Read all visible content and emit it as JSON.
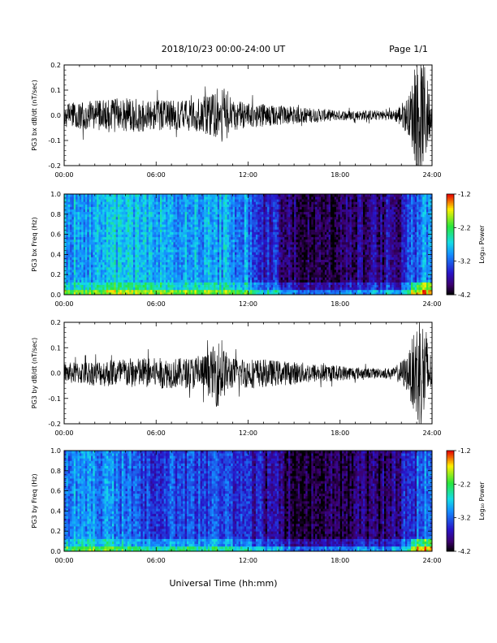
{
  "header": {
    "title": "2018/10/23  00:00-24:00 UT",
    "page": "Page 1/1"
  },
  "xlabel": "Universal Time (hh:mm)",
  "colorbar_label": "Log₁₀ Power",
  "chart_data": [
    {
      "type": "line",
      "ylabel": "PG3 bx dB/dt (nT/sec)",
      "xlim": [
        0,
        24
      ],
      "ylim": [
        -0.2,
        0.2
      ],
      "x_ticks": [
        "00:00",
        "06:00",
        "12:00",
        "18:00",
        "24:00"
      ],
      "y_ticks": [
        "-0.2",
        "-0.1",
        "0.0",
        "0.1",
        "0.2"
      ],
      "x_hours": [
        0,
        2,
        4,
        6,
        8,
        9.5,
        10,
        10.5,
        11,
        12,
        14,
        16,
        18,
        20,
        21.5,
        22.5,
        23,
        23.5,
        24
      ],
      "envelope": [
        0.05,
        0.06,
        0.07,
        0.06,
        0.06,
        0.08,
        0.09,
        0.12,
        0.06,
        0.05,
        0.04,
        0.03,
        0.02,
        0.02,
        0.02,
        0.08,
        0.22,
        0.22,
        0.05
      ]
    },
    {
      "type": "heatmap",
      "ylabel": "PG3 bx Freq (Hz)",
      "xlim": [
        0,
        24
      ],
      "ylim": [
        0.0,
        1.0
      ],
      "x_ticks": [
        "00:00",
        "06:00",
        "12:00",
        "18:00",
        "24:00"
      ],
      "y_ticks": [
        "0.0",
        "0.2",
        "0.4",
        "0.6",
        "0.8",
        "1.0"
      ],
      "colorbar": {
        "min": -4.2,
        "max": -1.2,
        "ticks": [
          "-1.2",
          "-2.2",
          "-3.2",
          "-4.2"
        ]
      },
      "hour_level": [
        -2.9,
        -2.9,
        -2.8,
        -2.8,
        -2.8,
        -2.9,
        -2.9,
        -2.9,
        -2.9,
        -2.9,
        -2.9,
        -3.0,
        -3.3,
        -3.5,
        -3.8,
        -3.9,
        -4.0,
        -4.0,
        -3.9,
        -3.9,
        -3.8,
        -3.7,
        -3.3,
        -3.0
      ]
    },
    {
      "type": "line",
      "ylabel": "PG3 by dB/dt (nT/sec)",
      "xlim": [
        0,
        24
      ],
      "ylim": [
        -0.2,
        0.2
      ],
      "x_ticks": [
        "00:00",
        "06:00",
        "12:00",
        "18:00",
        "24:00"
      ],
      "y_ticks": [
        "-0.2",
        "-0.1",
        "0.0",
        "0.1",
        "0.2"
      ],
      "x_hours": [
        0,
        2,
        4,
        6,
        8,
        9.5,
        10,
        10.5,
        11,
        12,
        14,
        16,
        18,
        20,
        21.5,
        22.5,
        23,
        23.5,
        24
      ],
      "envelope": [
        0.04,
        0.05,
        0.06,
        0.06,
        0.06,
        0.08,
        0.14,
        0.09,
        0.06,
        0.06,
        0.05,
        0.04,
        0.03,
        0.02,
        0.02,
        0.08,
        0.22,
        0.22,
        0.05
      ]
    },
    {
      "type": "heatmap",
      "ylabel": "PG3 by Freq (Hz)",
      "xlim": [
        0,
        24
      ],
      "ylim": [
        0.0,
        1.0
      ],
      "x_ticks": [
        "00:00",
        "06:00",
        "12:00",
        "18:00",
        "24:00"
      ],
      "y_ticks": [
        "0.0",
        "0.2",
        "0.4",
        "0.6",
        "0.8",
        "1.0"
      ],
      "colorbar": {
        "min": -4.2,
        "max": -1.2,
        "ticks": [
          "-1.2",
          "-2.2",
          "-3.2",
          "-4.2"
        ]
      },
      "hour_level": [
        -3.0,
        -3.0,
        -3.0,
        -3.1,
        -3.2,
        -3.3,
        -3.3,
        -3.3,
        -3.3,
        -3.3,
        -3.3,
        -3.4,
        -3.6,
        -3.8,
        -3.9,
        -4.0,
        -4.0,
        -4.0,
        -4.0,
        -3.9,
        -3.9,
        -3.8,
        -3.5,
        -3.1
      ]
    }
  ]
}
